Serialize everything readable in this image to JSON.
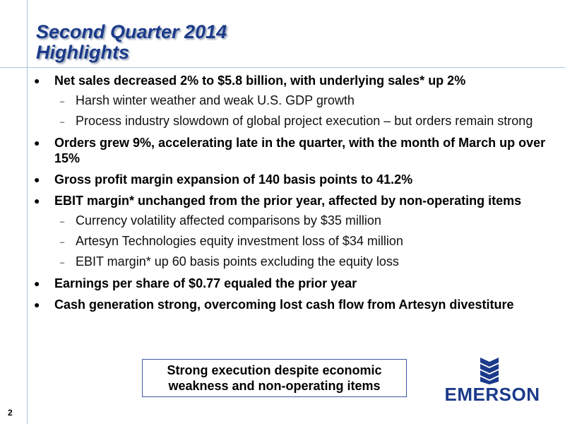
{
  "title": {
    "line1": "Second Quarter 2014",
    "line2": "Highlights"
  },
  "bullets": [
    {
      "text": "Net sales decreased 2% to $5.8 billion, with underlying sales* up 2%",
      "subs": [
        "Harsh winter weather and weak U.S. GDP growth",
        "Process industry slowdown of global project execution – but orders remain strong"
      ]
    },
    {
      "text": "Orders grew 9%, accelerating late in the quarter, with the month of March up over 15%"
    },
    {
      "text": "Gross profit margin expansion of 140 basis points to 41.2%"
    },
    {
      "text": "EBIT margin* unchanged from the prior year, affected by non-operating items",
      "subs": [
        "Currency volatility affected comparisons by $35 million",
        "Artesyn Technologies equity investment loss of $34 million",
        "EBIT margin* up 60 basis points excluding the equity loss"
      ]
    },
    {
      "text": "Earnings per share of $0.77 equaled the prior year"
    },
    {
      "text": "Cash generation strong, overcoming lost cash flow from Artesyn divestiture"
    }
  ],
  "callout": {
    "line1": "Strong execution despite economic",
    "line2": "weakness and non-operating items"
  },
  "logo": {
    "text": "EMERSON",
    "icon": "emerson-logo-icon"
  },
  "page_number": "2",
  "colors": {
    "title": "#1b3a8a",
    "rules": "#a9c6e3",
    "callout_border": "#3b5aa3",
    "logo": "#1b3a8a"
  }
}
